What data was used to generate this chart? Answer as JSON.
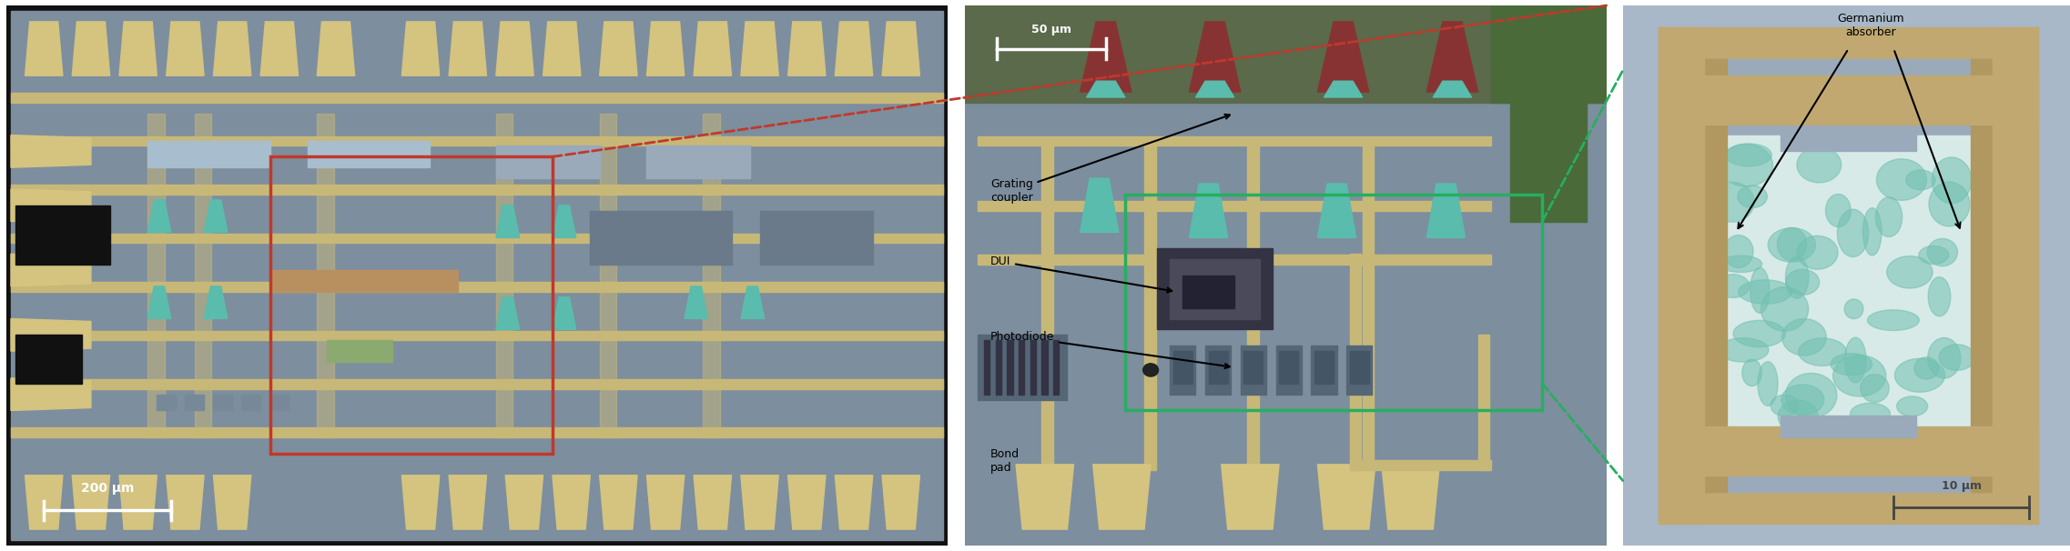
{
  "figure_width": 22.74,
  "figure_height": 6.06,
  "dpi": 100,
  "panel1": {
    "bg_color": "#1a1a1a",
    "border_color": "#1a1a1a",
    "scale_bar_text": "200 μm",
    "scale_bar_color": "white",
    "chip_bg": "#7d8e9e",
    "metal_color": "#c8b878",
    "pad_color": "#d4c480"
  },
  "panel2": {
    "border_color": "#c0392b",
    "border_width": 3,
    "scale_bar_text": "50 μm",
    "scale_bar_color": "white",
    "label_grating": "Grating\ncoupler",
    "label_dui": "DUI",
    "label_photodiode": "Photodiode",
    "label_bond": "Bond\npad",
    "chip_bg": "#7d8e9e"
  },
  "panel3": {
    "border_color": "#27ae60",
    "border_width": 3,
    "scale_bar_text": "10 μm",
    "scale_bar_color": "#555555",
    "label": "Germanium\nabsorber",
    "chip_bg": "#a8b8c8"
  },
  "background_color": "#ffffff"
}
